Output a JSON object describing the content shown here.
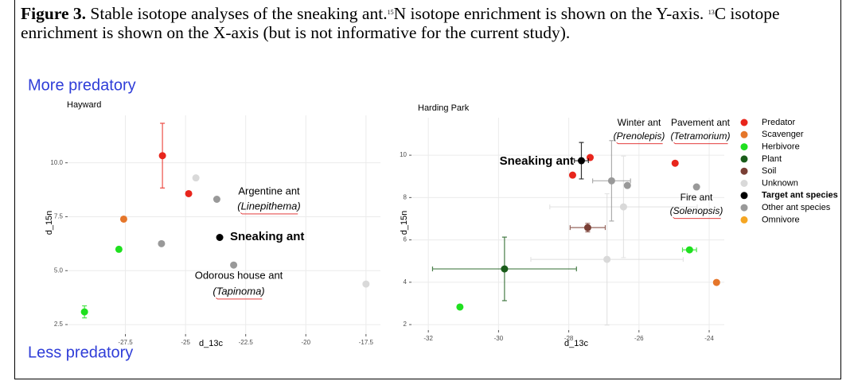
{
  "caption": {
    "label": "Figure 3.",
    "text": [
      "Stable isotope analyses of the sneaking ant.",
      "15",
      "N isotope enrichment is shown on the Y-axis.",
      "13",
      "C isotope enrichment is shown on the X-axis (but is not informative for the current study)."
    ]
  },
  "side_labels": [
    "More predatory",
    "Less predatory"
  ],
  "chart_data": [
    {
      "type": "scatter",
      "title": "Hayward",
      "x_label": "d_13c",
      "y_label": "d_15n",
      "xlim": [
        -29.9,
        -16.9
      ],
      "ylim": [
        2.06,
        12.2
      ],
      "xticks": [
        -27.5,
        -25,
        -22.5,
        -20,
        -17.5
      ],
      "yticks": [
        2.5,
        {
          "value": 5,
          "label": "5.0"
        },
        7.5,
        {
          "value": 10,
          "label": "10.0"
        }
      ],
      "grid": true,
      "series": [
        {
          "color": "#e8251c",
          "x": [
            -25.96,
            -24.87
          ],
          "y": [
            10.33,
            8.57
          ],
          "yerr": [
            1.5,
            null
          ]
        },
        {
          "color": "#e5762a",
          "x": [
            -27.57
          ],
          "y": [
            7.39
          ]
        },
        {
          "color": "#1fe01f",
          "x": [
            -27.77,
            -29.2
          ],
          "y": [
            5.99,
            3.09
          ],
          "yerr": [
            null,
            0.28
          ]
        },
        {
          "color": "#d9d9d9",
          "x": [
            -24.57,
            -17.5
          ],
          "y": [
            9.3,
            4.38
          ]
        },
        {
          "color": "#000000",
          "x": [
            -23.58
          ],
          "y": [
            6.54
          ]
        },
        {
          "color": "#999999",
          "x": [
            -23.7,
            -26.0,
            -23.0
          ],
          "y": [
            8.31,
            6.25,
            5.26
          ]
        }
      ],
      "annotations": [
        "Argentine ant",
        "(Linepithema)",
        "Sneaking ant",
        "Odorous house ant",
        "(Tapinoma)"
      ]
    },
    {
      "type": "scatter",
      "title": "Harding Park",
      "x_label": "d_13c",
      "y_label": "d_15n",
      "xlim": [
        -32.48,
        -23.57
      ],
      "ylim": [
        1.74,
        11.77
      ],
      "xticks": [
        -32,
        -30,
        -28,
        -26,
        -24
      ],
      "yticks": [
        2,
        4,
        6,
        8,
        10
      ],
      "grid": true,
      "series": [
        {
          "name": "Predator",
          "color": "#e8251c",
          "x": [
            -27.39,
            -27.89,
            -24.97
          ],
          "y": [
            9.89,
            9.06,
            9.62
          ]
        },
        {
          "name": "Scavenger",
          "color": "#e5762a",
          "x": [
            -23.79
          ],
          "y": [
            3.99
          ]
        },
        {
          "name": "Herbivore",
          "color": "#1fe01f",
          "x": [
            -24.56,
            -31.1
          ],
          "y": [
            5.53,
            2.83
          ],
          "xerr": [
            0.2,
            null
          ]
        },
        {
          "name": "Plant",
          "color": "#1a5c1a",
          "x": [
            -29.83
          ],
          "y": [
            4.63
          ],
          "xerr": [
            2.05
          ],
          "yerr": [
            1.5
          ]
        },
        {
          "name": "Soil",
          "color": "#7a3f35",
          "x": [
            -27.46
          ],
          "y": [
            6.58
          ],
          "xerr": [
            0.5
          ],
          "yerr": [
            0.2
          ]
        },
        {
          "name": "Unknown",
          "color": "#d9d9d9",
          "x": [
            -26.44,
            -26.91
          ],
          "y": [
            7.56,
            5.08
          ],
          "xerr": [
            2.1,
            2.17
          ],
          "yerr": [
            2.4,
            3.1
          ]
        },
        {
          "name": "Target ant species",
          "color": "#000000",
          "x": [
            -27.64
          ],
          "y": [
            9.74
          ],
          "xerr": [
            0.2
          ],
          "yerr": [
            0.86
          ]
        },
        {
          "name": "Other ant species",
          "color": "#999999",
          "x": [
            -26.78,
            -26.33,
            -24.36
          ],
          "y": [
            8.79,
            8.57,
            8.5
          ],
          "xerr": [
            0.54,
            null,
            null
          ],
          "yerr": [
            1.9,
            null,
            null
          ]
        },
        {
          "name": "Omnivore",
          "color": "#f5a623",
          "x": [],
          "y": []
        }
      ],
      "annotations": [
        "Sneaking ant",
        "Winter ant",
        "(Prenolepis)",
        "Pavement ant",
        "(Tetramorium)",
        "Fire ant",
        "(Solenopsis)"
      ]
    }
  ]
}
